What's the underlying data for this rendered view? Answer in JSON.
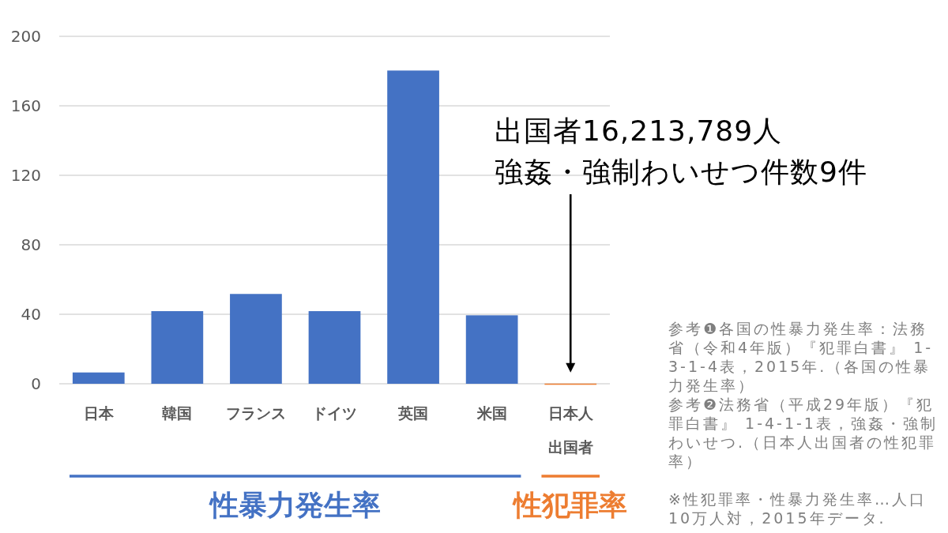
{
  "chart_data": {
    "type": "bar",
    "categories": [
      "日本",
      "韓国",
      "フランス",
      "ドイツ",
      "英国",
      "米国",
      "日本人出国者"
    ],
    "values": [
      6.5,
      41.8,
      51.7,
      41.8,
      180.3,
      39.4,
      0.1
    ],
    "colors": [
      "#4472c4",
      "#4472c4",
      "#4472c4",
      "#4472c4",
      "#4472c4",
      "#4472c4",
      "#ed7d31"
    ],
    "ylim": [
      0,
      200
    ],
    "yticks": [
      0,
      40,
      80,
      120,
      160,
      200
    ],
    "grid": "y",
    "annotations": [
      "出国者16,213,789人",
      "強姦・強制わいせつ件数9件",
      "性暴力発生率",
      "性犯罪率",
      "参考❶各国の性暴力発生率：法務省（令和4年版）『犯罪白書』 1-3-1-4表，2015年.（各国の性暴力発生率）",
      "参考❷法務省（平成29年版）『犯罪白書』 1-4-1-1表，強姦・強制わいせつ.（日本人出国者の性犯罪率）",
      "※性犯罪率・性暴力発生率…人口10万人対，2015年データ."
    ]
  }
}
